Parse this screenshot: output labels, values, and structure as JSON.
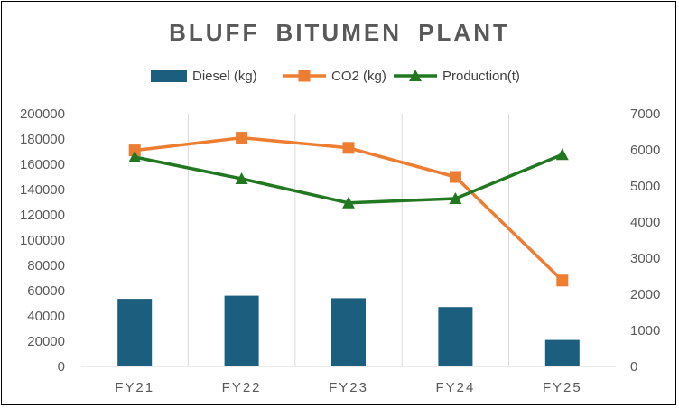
{
  "chart_data": {
    "type": "bar",
    "title": "BLUFF BITUMEN PLANT",
    "categories": [
      "FY21",
      "FY22",
      "FY23",
      "FY24",
      "FY25"
    ],
    "series": [
      {
        "name": "Diesel (kg)",
        "type": "bar",
        "axis": "left",
        "color": "#1B5E7E",
        "values": [
          53500,
          56000,
          54000,
          47000,
          21000
        ]
      },
      {
        "name": "CO2 (kg)",
        "type": "line",
        "marker": "square",
        "axis": "left",
        "color": "#ED7D31",
        "values": [
          171000,
          181000,
          173000,
          150000,
          68000
        ]
      },
      {
        "name": "Production(t)",
        "type": "line",
        "marker": "triangle",
        "axis": "right",
        "color": "#217821",
        "values": [
          5800,
          5200,
          4530,
          4650,
          5870
        ]
      }
    ],
    "y_left": {
      "min": 0,
      "max": 200000,
      "ticks": [
        "0",
        "20000",
        "40000",
        "60000",
        "80000",
        "100000",
        "120000",
        "140000",
        "160000",
        "180000",
        "200000"
      ]
    },
    "y_right": {
      "min": 0,
      "max": 7000,
      "ticks": [
        "0",
        "1000",
        "2000",
        "3000",
        "4000",
        "5000",
        "6000",
        "7000"
      ]
    },
    "xlabel": "",
    "ylabel": "",
    "legend": "top",
    "grid": "vertical"
  }
}
